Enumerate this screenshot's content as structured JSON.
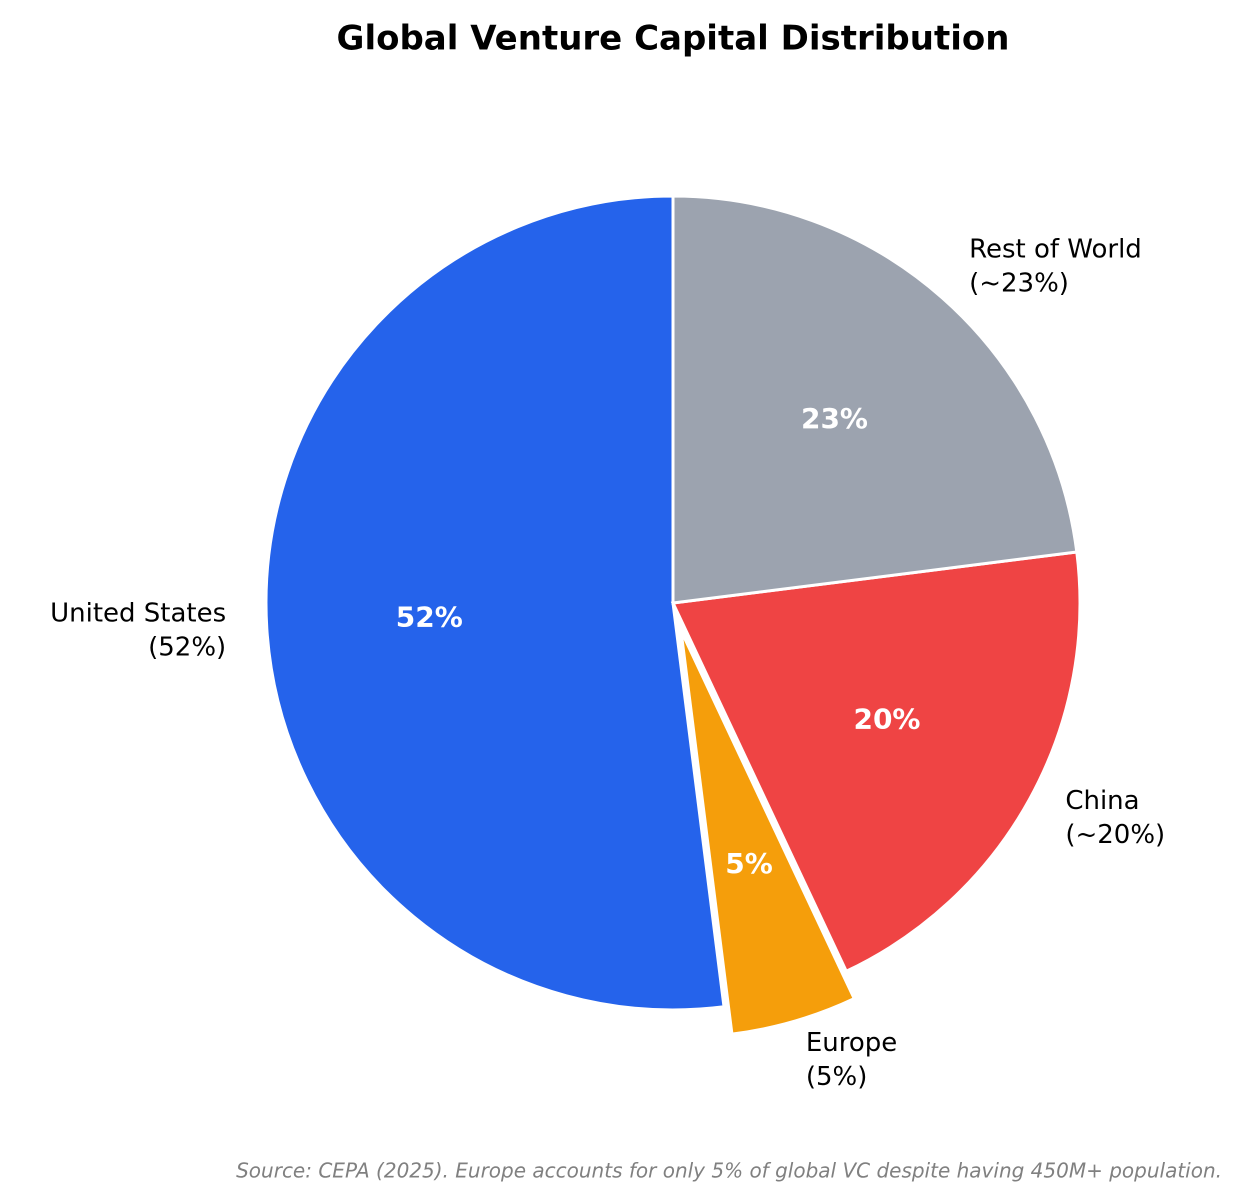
{
  "chart_data": {
    "type": "pie",
    "title": "Global Venture Capital Distribution",
    "categories": [
      "United States",
      "Europe",
      "China",
      "Rest of World"
    ],
    "outer_labels": [
      "(52%)",
      "(5%)",
      "(~20%)",
      "(~23%)"
    ],
    "values": [
      52,
      5,
      20,
      23
    ],
    "value_labels": [
      "52%",
      "5%",
      "20%",
      "23%"
    ],
    "colors": [
      "#2563eb",
      "#f59e0b",
      "#ef4444",
      "#9ca3af"
    ],
    "exploded": [
      false,
      true,
      false,
      false
    ],
    "start_angle": 90,
    "direction": "counterclockwise",
    "source": "Source: CEPA (2025). Europe accounts for only 5% of global VC despite having 450M+ population."
  }
}
